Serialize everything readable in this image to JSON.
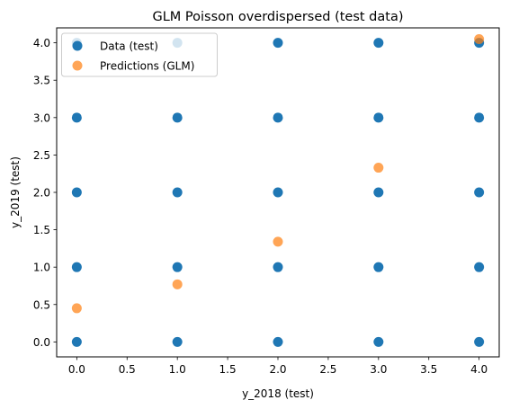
{
  "chart_data": {
    "type": "scatter",
    "title": "GLM Poisson overdispersed (test data)",
    "xlabel": "y_2018 (test)",
    "ylabel": "y_2019 (test)",
    "xlim": [
      -0.2,
      4.2
    ],
    "ylim": [
      -0.2,
      4.2
    ],
    "xticks": [
      0.0,
      0.5,
      1.0,
      1.5,
      2.0,
      2.5,
      3.0,
      3.5,
      4.0
    ],
    "yticks": [
      0.0,
      0.5,
      1.0,
      1.5,
      2.0,
      2.5,
      3.0,
      3.5,
      4.0
    ],
    "xtick_labels": [
      "0.0",
      "0.5",
      "1.0",
      "1.5",
      "2.0",
      "2.5",
      "3.0",
      "3.5",
      "4.0"
    ],
    "ytick_labels": [
      "0.0",
      "0.5",
      "1.0",
      "1.5",
      "2.0",
      "2.5",
      "3.0",
      "3.5",
      "4.0"
    ],
    "grid": false,
    "legend_position": "top-left",
    "series": [
      {
        "name": "Data (test)",
        "color": "#1f77b4",
        "x": [
          0,
          0,
          0,
          0,
          0,
          1,
          1,
          1,
          1,
          1,
          2,
          2,
          2,
          2,
          2,
          3,
          3,
          3,
          3,
          3,
          4,
          4,
          4,
          4,
          4
        ],
        "y": [
          0,
          1,
          2,
          3,
          4,
          0,
          1,
          2,
          3,
          4,
          0,
          1,
          2,
          3,
          4,
          0,
          1,
          2,
          3,
          4,
          0,
          1,
          2,
          3,
          4
        ]
      },
      {
        "name": "Predictions (GLM)",
        "color": "#ff7f0e",
        "x": [
          0,
          1,
          2,
          3,
          4
        ],
        "y": [
          0.45,
          0.77,
          1.34,
          2.33,
          4.05
        ]
      }
    ]
  }
}
